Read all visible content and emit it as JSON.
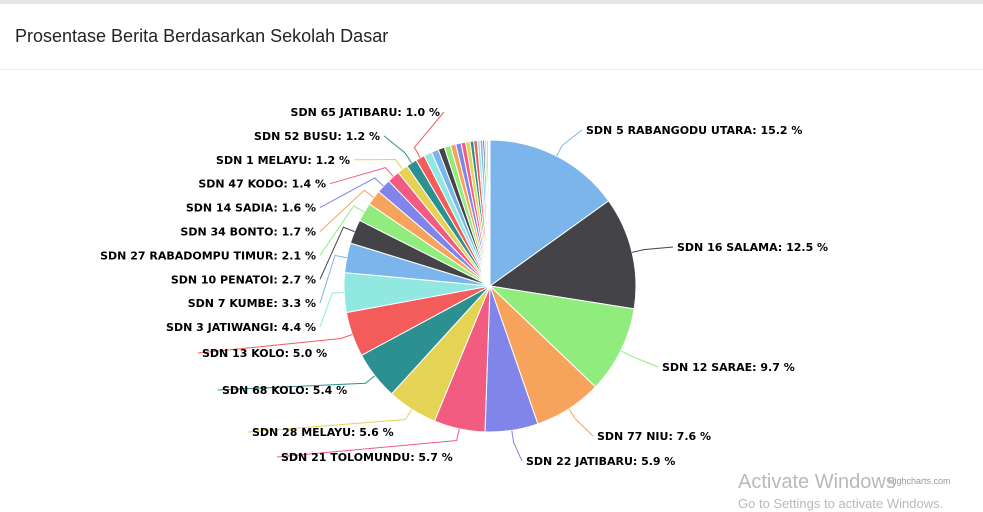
{
  "header": {
    "title": "Prosentase Berita Berdasarkan Sekolah Dasar"
  },
  "chart_data": {
    "type": "pie",
    "title": "",
    "label_format": "{name}: {value} %",
    "slices": [
      {
        "name": "SDN 5 RABANGODU UTARA",
        "value": 15.2,
        "color": "#7cb5ec"
      },
      {
        "name": "SDN 16 SALAMA",
        "value": 12.5,
        "color": "#434348"
      },
      {
        "name": "SDN 12 SARAE",
        "value": 9.7,
        "color": "#90ed7d"
      },
      {
        "name": "SDN 77 NIU",
        "value": 7.6,
        "color": "#f7a35c"
      },
      {
        "name": "SDN 22 JATIBARU",
        "value": 5.9,
        "color": "#8085e9"
      },
      {
        "name": "SDN 21 TOLOMUNDU",
        "value": 5.7,
        "color": "#f15c80"
      },
      {
        "name": "SDN 28 MELAYU",
        "value": 5.6,
        "color": "#e4d354"
      },
      {
        "name": "SDN 68 KOLO",
        "value": 5.4,
        "color": "#2b908f"
      },
      {
        "name": "SDN 13 KOLO",
        "value": 5.0,
        "color": "#f45b5b"
      },
      {
        "name": "SDN 3 JATIWANGI",
        "value": 4.4,
        "color": "#91e8e1"
      },
      {
        "name": "SDN 7 KUMBE",
        "value": 3.3,
        "color": "#7cb5ec"
      },
      {
        "name": "SDN 10 PENATOI",
        "value": 2.7,
        "color": "#434348"
      },
      {
        "name": "SDN 27 RABADOMPU TIMUR",
        "value": 2.1,
        "color": "#90ed7d"
      },
      {
        "name": "SDN 34  BONTO",
        "value": 1.7,
        "color": "#f7a35c"
      },
      {
        "name": "SDN 14 SADIA",
        "value": 1.6,
        "color": "#8085e9"
      },
      {
        "name": "SDN 47 KODO",
        "value": 1.4,
        "color": "#f15c80"
      },
      {
        "name": "SDN 1 MELAYU",
        "value": 1.2,
        "color": "#e4d354"
      },
      {
        "name": "SDN 52 BUSU",
        "value": 1.2,
        "color": "#2b908f"
      },
      {
        "name": "SDN 65 JATIBARU",
        "value": 1.0,
        "color": "#f45b5b"
      },
      {
        "name": "",
        "value": 0.9,
        "color": "#91e8e1"
      },
      {
        "name": "",
        "value": 0.8,
        "color": "#7cb5ec"
      },
      {
        "name": "",
        "value": 0.7,
        "color": "#434348"
      },
      {
        "name": "",
        "value": 0.7,
        "color": "#90ed7d"
      },
      {
        "name": "",
        "value": 0.6,
        "color": "#f7a35c"
      },
      {
        "name": "",
        "value": 0.6,
        "color": "#8085e9"
      },
      {
        "name": "",
        "value": 0.5,
        "color": "#f15c80"
      },
      {
        "name": "",
        "value": 0.5,
        "color": "#e4d354"
      },
      {
        "name": "",
        "value": 0.4,
        "color": "#2b908f"
      },
      {
        "name": "",
        "value": 0.4,
        "color": "#f45b5b"
      },
      {
        "name": "",
        "value": 0.3,
        "color": "#91e8e1"
      },
      {
        "name": "",
        "value": 0.3,
        "color": "#7cb5ec"
      },
      {
        "name": "",
        "value": 0.2,
        "color": "#434348"
      },
      {
        "name": "",
        "value": 0.2,
        "color": "#90ed7d"
      },
      {
        "name": "",
        "value": 0.2,
        "color": "#f7a35c"
      },
      {
        "name": "",
        "value": 0.1,
        "color": "#8085e9"
      },
      {
        "name": "",
        "value": 0.1,
        "color": "#f15c80"
      }
    ],
    "credits": "Highcharts.com"
  },
  "watermark": {
    "line1": "Activate Windows",
    "line2": "Go to Settings to activate Windows."
  }
}
